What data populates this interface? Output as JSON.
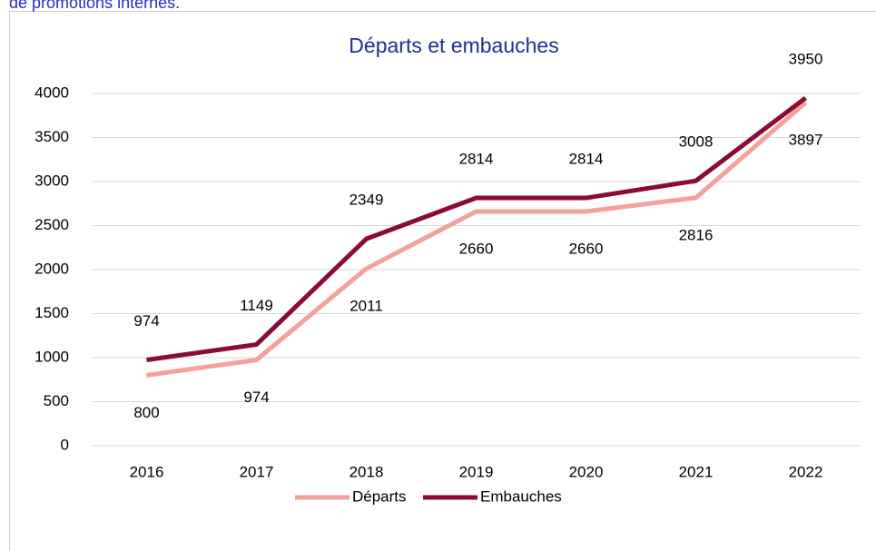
{
  "header_text": "de promotions internes.",
  "chart_data": {
    "type": "line",
    "title": "Départs et embauches",
    "categories": [
      "2016",
      "2017",
      "2018",
      "2019",
      "2020",
      "2021",
      "2022"
    ],
    "series": [
      {
        "name": "Départs",
        "color": "#f4a09c",
        "values": [
          800,
          974,
          2011,
          2660,
          2660,
          2816,
          3897
        ]
      },
      {
        "name": "Embauches",
        "color": "#8b0a3a",
        "values": [
          974,
          1149,
          2349,
          2814,
          2814,
          3008,
          3950
        ]
      }
    ],
    "ylim": [
      0,
      4000
    ],
    "yticks": [
      0,
      500,
      1000,
      1500,
      2000,
      2500,
      3000,
      3500,
      4000
    ],
    "grid": true,
    "legend": "bottom"
  }
}
